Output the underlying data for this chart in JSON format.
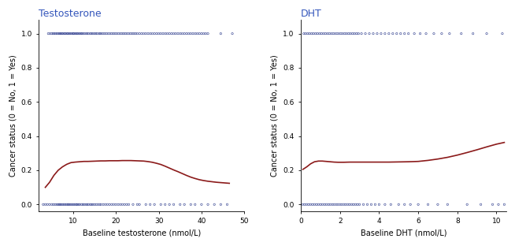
{
  "left_title": "Testosterone",
  "right_title": "DHT",
  "ylabel": "Cancer status (0 = No, 1 = Yes)",
  "left_xlabel": "Baseline testosterone (nmol/L)",
  "right_xlabel": "Baseline DHT (nmol/L)",
  "title_color": "#3355BB",
  "scatter_color": "#2B3A8B",
  "line_color": "#8B1A1A",
  "background_color": "#FFFFFF",
  "left_xlim": [
    2,
    50
  ],
  "left_xticks": [
    10,
    20,
    30,
    40,
    50
  ],
  "right_xlim": [
    0,
    10.5
  ],
  "right_xticks": [
    0,
    2,
    4,
    6,
    8,
    10
  ],
  "ylim": [
    -0.04,
    1.08
  ],
  "yticks": [
    0.0,
    0.2,
    0.4,
    0.6,
    0.8,
    1.0
  ],
  "left_scatter_x_top": [
    4.2,
    4.6,
    5.0,
    5.3,
    5.6,
    5.9,
    6.2,
    6.5,
    6.8,
    7.0,
    7.2,
    7.5,
    7.7,
    8.0,
    8.2,
    8.5,
    8.7,
    9.0,
    9.2,
    9.5,
    9.8,
    10.0,
    10.2,
    10.5,
    10.7,
    11.0,
    11.2,
    11.5,
    11.8,
    12.0,
    12.3,
    12.6,
    13.0,
    13.3,
    13.6,
    14.0,
    14.3,
    14.6,
    15.0,
    15.3,
    15.6,
    16.0,
    16.3,
    16.6,
    17.0,
    17.4,
    17.8,
    18.2,
    18.6,
    19.0,
    19.4,
    19.8,
    20.2,
    20.6,
    21.0,
    21.4,
    21.8,
    22.2,
    22.6,
    23.0,
    23.4,
    23.8,
    24.2,
    24.6,
    25.0,
    25.5,
    26.0,
    26.5,
    27.0,
    27.5,
    28.0,
    28.5,
    29.0,
    29.5,
    30.0,
    30.5,
    31.0,
    31.5,
    32.0,
    32.5,
    33.0,
    33.5,
    34.0,
    34.5,
    35.0,
    35.5,
    36.0,
    36.5,
    37.0,
    37.5,
    38.0,
    38.5,
    39.0,
    39.5,
    40.0,
    40.5,
    41.0,
    41.5,
    44.5,
    47.2
  ],
  "left_scatter_x_bot": [
    3.0,
    3.5,
    4.0,
    4.5,
    5.0,
    5.4,
    5.8,
    6.2,
    6.5,
    6.8,
    7.0,
    7.3,
    7.6,
    7.9,
    8.2,
    8.5,
    8.8,
    9.0,
    9.3,
    9.6,
    9.9,
    10.2,
    10.5,
    10.8,
    11.0,
    11.3,
    11.6,
    12.0,
    12.3,
    12.6,
    13.0,
    13.3,
    13.6,
    14.0,
    14.3,
    14.6,
    15.0,
    15.4,
    15.8,
    16.2,
    16.5,
    17.0,
    17.5,
    18.0,
    18.5,
    19.0,
    19.5,
    20.0,
    20.5,
    21.0,
    21.5,
    22.0,
    22.5,
    23.0,
    24.0,
    25.0,
    25.5,
    27.0,
    28.0,
    29.0,
    30.5,
    31.5,
    32.5,
    33.5,
    35.0,
    36.0,
    37.5,
    38.5,
    40.0,
    41.5,
    43.0,
    44.5,
    46.0
  ],
  "right_scatter_x_top": [
    0.15,
    0.25,
    0.35,
    0.45,
    0.55,
    0.65,
    0.75,
    0.85,
    0.95,
    1.05,
    1.15,
    1.25,
    1.35,
    1.45,
    1.55,
    1.65,
    1.75,
    1.85,
    1.95,
    2.05,
    2.15,
    2.25,
    2.35,
    2.45,
    2.55,
    2.65,
    2.75,
    2.85,
    2.95,
    3.1,
    3.3,
    3.5,
    3.7,
    3.9,
    4.1,
    4.3,
    4.5,
    4.7,
    4.9,
    5.1,
    5.3,
    5.5,
    5.8,
    6.1,
    6.4,
    6.8,
    7.2,
    7.6,
    8.2,
    8.8,
    9.5,
    10.3
  ],
  "right_scatter_x_bot": [
    0.1,
    0.2,
    0.3,
    0.4,
    0.5,
    0.6,
    0.7,
    0.8,
    0.9,
    1.0,
    1.1,
    1.2,
    1.3,
    1.4,
    1.5,
    1.6,
    1.7,
    1.8,
    1.9,
    2.0,
    2.1,
    2.2,
    2.3,
    2.4,
    2.5,
    2.6,
    2.7,
    2.8,
    2.9,
    3.0,
    3.2,
    3.4,
    3.6,
    3.8,
    4.0,
    4.3,
    4.6,
    5.0,
    5.3,
    5.6,
    6.0,
    6.5,
    7.0,
    7.5,
    8.5,
    9.2,
    9.8,
    10.1,
    10.4
  ],
  "left_lowess_x": [
    3.5,
    4.5,
    5.5,
    6.5,
    7.5,
    8.5,
    9.5,
    10.5,
    11.5,
    12.5,
    13.5,
    14.5,
    15.5,
    16.5,
    17.5,
    18.5,
    19.5,
    20.5,
    21.5,
    22.5,
    23.5,
    24.5,
    25.5,
    26.5,
    27.5,
    28.5,
    29.5,
    30.5,
    31.5,
    32.5,
    33.5,
    34.5,
    35.5,
    36.5,
    37.5,
    38.5,
    39.5,
    40.5,
    41.5,
    42.5,
    43.5,
    44.5,
    45.5,
    46.5
  ],
  "left_lowess_y": [
    0.1,
    0.13,
    0.17,
    0.2,
    0.22,
    0.235,
    0.245,
    0.248,
    0.25,
    0.252,
    0.252,
    0.253,
    0.254,
    0.255,
    0.255,
    0.256,
    0.256,
    0.256,
    0.257,
    0.257,
    0.257,
    0.256,
    0.255,
    0.254,
    0.251,
    0.247,
    0.241,
    0.234,
    0.224,
    0.213,
    0.202,
    0.192,
    0.181,
    0.17,
    0.16,
    0.152,
    0.145,
    0.14,
    0.136,
    0.133,
    0.13,
    0.128,
    0.126,
    0.124
  ],
  "right_lowess_x": [
    0.1,
    0.3,
    0.5,
    0.7,
    0.9,
    1.1,
    1.3,
    1.5,
    1.7,
    1.9,
    2.2,
    2.5,
    2.8,
    3.2,
    3.6,
    4.0,
    4.5,
    5.0,
    5.5,
    6.0,
    6.5,
    7.0,
    7.5,
    8.0,
    8.5,
    9.0,
    9.5,
    10.0,
    10.4
  ],
  "right_lowess_y": [
    0.205,
    0.22,
    0.238,
    0.25,
    0.254,
    0.254,
    0.252,
    0.25,
    0.248,
    0.247,
    0.247,
    0.248,
    0.248,
    0.248,
    0.248,
    0.248,
    0.248,
    0.249,
    0.25,
    0.252,
    0.258,
    0.266,
    0.276,
    0.289,
    0.304,
    0.32,
    0.337,
    0.353,
    0.363
  ],
  "figsize": [
    6.54,
    3.12
  ],
  "dpi": 100
}
